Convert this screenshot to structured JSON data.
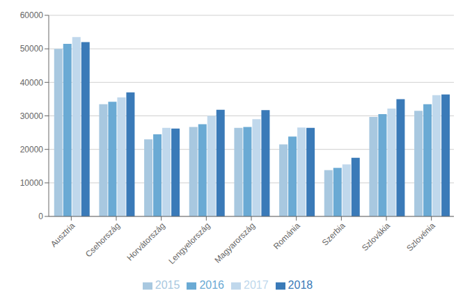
{
  "chart_data": {
    "type": "bar",
    "categories": [
      "Ausztria",
      "Csehország",
      "Horvátország",
      "Lengyelország",
      "Magyarország",
      "Románia",
      "Szerbia",
      "Szlovákia",
      "Szlovénia"
    ],
    "series": [
      {
        "name": "2015",
        "color": "#a8c8e0",
        "values": [
          50000,
          33500,
          23000,
          26700,
          26400,
          21500,
          13800,
          29700,
          31500
        ]
      },
      {
        "name": "2016",
        "color": "#6aaad4",
        "values": [
          51500,
          34200,
          24500,
          27500,
          26700,
          23800,
          14500,
          30500,
          33500
        ]
      },
      {
        "name": "2017",
        "color": "#c0d8ec",
        "values": [
          53500,
          35500,
          26400,
          30000,
          29000,
          26500,
          15500,
          32200,
          36200
        ]
      },
      {
        "name": "2018",
        "color": "#3a7ab8",
        "values": [
          52000,
          37000,
          26200,
          31800,
          31700,
          26400,
          17500,
          35000,
          36400
        ]
      }
    ],
    "ylim": [
      0,
      60000
    ],
    "yticks": [
      0,
      10000,
      20000,
      30000,
      40000,
      50000,
      60000
    ],
    "grid": true,
    "legend": "bottom"
  }
}
